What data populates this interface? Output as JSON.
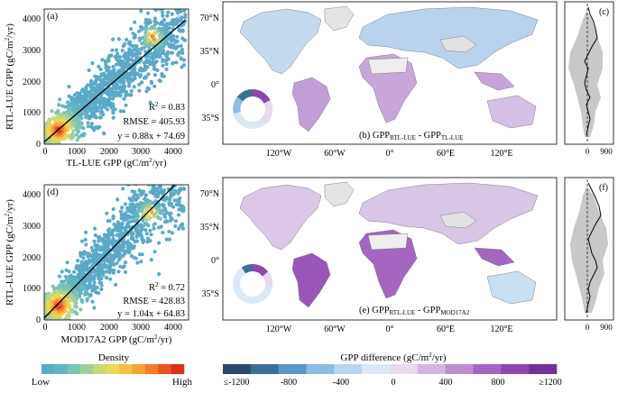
{
  "panels": {
    "a": {
      "label": "(a)",
      "xlabel": "TL-LUE GPP",
      "xunit_a": "(gC/m",
      "xunit_b": "/yr)",
      "ylabel_a": "RTL-LUE GPP",
      "ylabel_b": "(gC/m",
      "ylabel_c": "/yr)",
      "xticks": [
        "0",
        "1000",
        "2000",
        "3000",
        "4000"
      ],
      "yticks": [
        "0",
        "1000",
        "2000",
        "3000",
        "4000"
      ],
      "stats": {
        "r2_lead": "R",
        "r2_val": " = 0.83",
        "rmse": "RMSE = 405.93",
        "fit": "y = 0.88x + 74.69"
      }
    },
    "d": {
      "label": "(d)",
      "xlabel": "MOD17A2 GPP",
      "xunit_a": "(gC/m",
      "xunit_b": "/yr)",
      "ylabel_a": "RTL-LUE GPP",
      "ylabel_b": "(gC/m",
      "ylabel_c": "/yr)",
      "xticks": [
        "0",
        "1000",
        "2000",
        "3000",
        "4000"
      ],
      "yticks": [
        "0",
        "1000",
        "2000",
        "3000",
        "4000"
      ],
      "stats": {
        "r2_lead": "R",
        "r2_val": " = 0.72",
        "rmse": "RMSE = 428.83",
        "fit": "y = 1.04x + 64.83"
      }
    },
    "b": {
      "caption_a": "(b) GPP",
      "sub1": "RTL-LUE",
      "caption_mid": " - GPP",
      "sub2": "TL-LUE"
    },
    "e": {
      "caption_a": "(e) GPP",
      "sub1": "RTL-LUE",
      "caption_mid": " - GPP",
      "sub2": "MOD17A2"
    },
    "c": {
      "label": "(c)",
      "xticks": [
        "0",
        "900"
      ]
    },
    "f": {
      "label": "(f)",
      "xticks": [
        "0",
        "900"
      ]
    }
  },
  "map_axes": {
    "lat_ticks": [
      "70°N",
      "35°N",
      "0°",
      "35°S"
    ],
    "lon_ticks": [
      "120°W",
      "60°W",
      "0°",
      "60°E",
      "120°E"
    ]
  },
  "superscript_two": "2",
  "density_legend": {
    "title": "Density",
    "low": "Low",
    "high": "High"
  },
  "diff_legend": {
    "title_a": "GPP difference (gC/m",
    "title_b": "/yr)",
    "ticks": [
      "≤-1200",
      "-800",
      "-400",
      "0",
      "400",
      "800",
      "≥1200"
    ]
  },
  "colors": {
    "density_ramp": [
      "#5aa9c9",
      "#62b5c4",
      "#7cc3b3",
      "#a0cf9d",
      "#c8d879",
      "#e8d857",
      "#f3c241",
      "#f5a236",
      "#f27d2c",
      "#ea5523",
      "#dd2f1d"
    ],
    "diff_ramp": [
      "#2b4a6a",
      "#3b6f97",
      "#5a95c6",
      "#8cbbe3",
      "#b8d5ee",
      "#dbe9f6",
      "#e7d9ee",
      "#d4b4e0",
      "#bd8dd0",
      "#a566c1",
      "#8d47ad",
      "#74309a"
    ]
  },
  "chart_data": [
    {
      "id": "a",
      "type": "scatter",
      "xlabel": "TL-LUE GPP (gC/m2/yr)",
      "ylabel": "RTL-LUE GPP (gC/m2/yr)",
      "xlim": [
        0,
        4500
      ],
      "ylim": [
        0,
        4300
      ],
      "fit": {
        "slope": 0.88,
        "intercept": 74.69
      },
      "r2": 0.83,
      "rmse": 405.93
    },
    {
      "id": "d",
      "type": "scatter",
      "xlabel": "MOD17A2 GPP (gC/m2/yr)",
      "ylabel": "RTL-LUE GPP (gC/m2/yr)",
      "xlim": [
        0,
        4500
      ],
      "ylim": [
        0,
        4300
      ],
      "fit": {
        "slope": 1.04,
        "intercept": 64.83
      },
      "r2": 0.72,
      "rmse": 428.83
    }
  ]
}
